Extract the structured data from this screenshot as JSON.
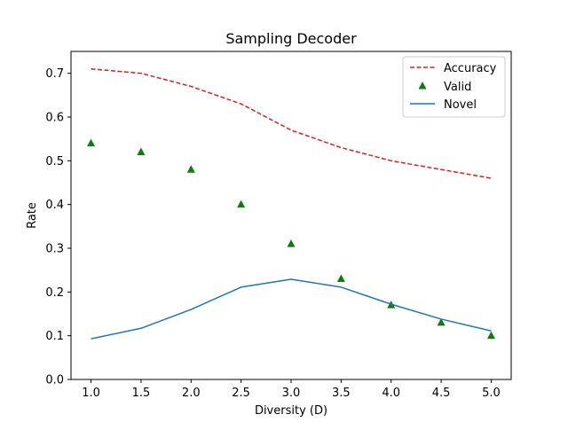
{
  "chart_data": {
    "type": "line",
    "title": "Sampling Decoder",
    "xlabel": "Diversity (D)",
    "ylabel": "Rate",
    "xlim": [
      0.8,
      5.2
    ],
    "ylim": [
      0.0,
      0.75
    ],
    "xticks": [
      "1.0",
      "1.5",
      "2.0",
      "2.5",
      "3.0",
      "3.5",
      "4.0",
      "4.5",
      "5.0"
    ],
    "yticks": [
      "0.0",
      "0.1",
      "0.2",
      "0.3",
      "0.4",
      "0.5",
      "0.6",
      "0.7"
    ],
    "x": [
      1.0,
      1.5,
      2.0,
      2.5,
      3.0,
      3.5,
      4.0,
      4.5,
      5.0
    ],
    "series": [
      {
        "name": "Accuracy",
        "style": "dashed-line",
        "color": "#d62020",
        "values": [
          0.71,
          0.7,
          0.67,
          0.63,
          0.57,
          0.53,
          0.5,
          0.48,
          0.46
        ]
      },
      {
        "name": "Valid",
        "style": "triangle-marker",
        "color": "#0a7d0a",
        "values": [
          0.54,
          0.52,
          0.48,
          0.4,
          0.31,
          0.23,
          0.17,
          0.13,
          0.1
        ]
      },
      {
        "name": "Novel",
        "style": "solid-line",
        "color": "#1f77b4",
        "values": [
          0.093,
          0.117,
          0.16,
          0.211,
          0.229,
          0.211,
          0.172,
          0.138,
          0.111
        ]
      }
    ],
    "legend": {
      "position": "top-right"
    },
    "grid": false
  }
}
